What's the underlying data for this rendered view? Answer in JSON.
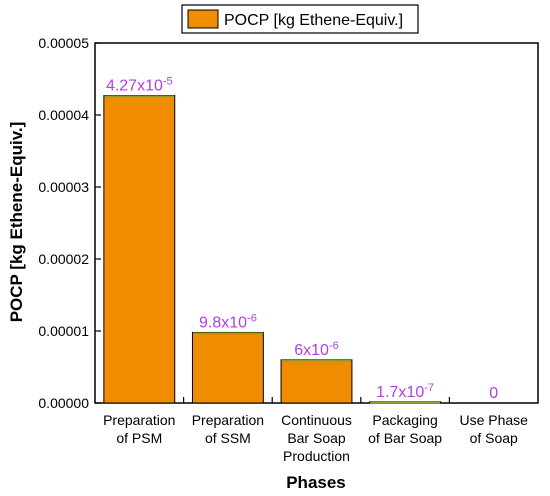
{
  "chart_data": {
    "type": "bar",
    "categories": [
      [
        "Preparation",
        "of PSM"
      ],
      [
        "Preparation",
        "of SSM"
      ],
      [
        "Continuous",
        "Bar Soap",
        "Production"
      ],
      [
        "Packaging",
        "of Bar Soap"
      ],
      [
        "Use Phase",
        "of Soap"
      ]
    ],
    "series": [
      {
        "name": "POCP [kg Ethene-Equiv.]",
        "values": [
          4.27e-05,
          9.8e-06,
          6e-06,
          1.7e-07,
          0
        ]
      }
    ],
    "data_labels": [
      {
        "mantissa": "4.27x10",
        "exponent": "-5"
      },
      {
        "mantissa": "9.8x10",
        "exponent": "-6"
      },
      {
        "mantissa": "6x10",
        "exponent": "-6"
      },
      {
        "mantissa": "1.7x10",
        "exponent": "-7"
      },
      {
        "mantissa": "0",
        "exponent": ""
      }
    ],
    "xlabel": "Phases",
    "ylabel": "POCP [kg Ethene-Equiv.]",
    "ylim": [
      0,
      5e-05
    ],
    "yticks": [
      0,
      1e-05,
      2e-05,
      3e-05,
      4e-05,
      5e-05
    ],
    "ytick_labels": [
      "0.00000",
      "0.00001",
      "0.00002",
      "0.00003",
      "0.00004",
      "0.00005"
    ],
    "legend_position": "top",
    "grid": false,
    "colors": {
      "bar": "#F08C00",
      "bar_top": "#8E9A2A",
      "label": "#B13FE0",
      "frame": "#000000"
    }
  }
}
